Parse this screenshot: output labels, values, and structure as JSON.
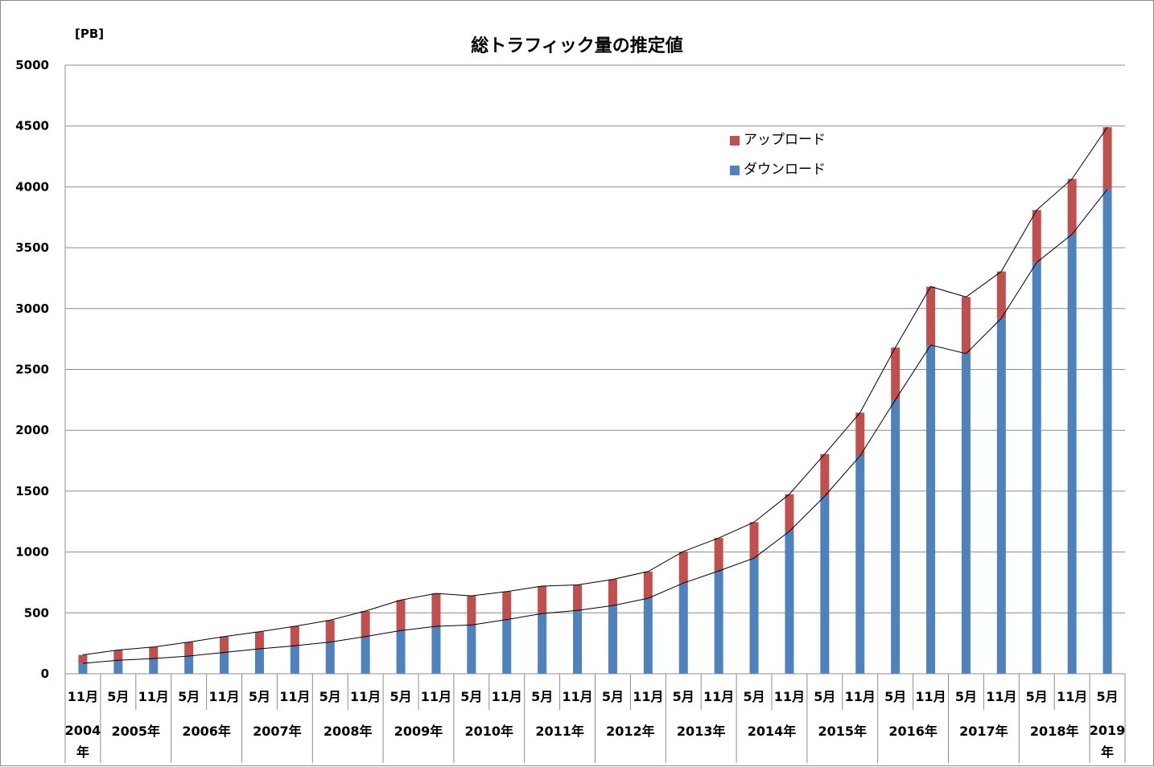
{
  "chart_data": {
    "type": "bar",
    "stacked": true,
    "title": "総トラフィック量の推定値",
    "unit_label": "[PB]",
    "ylim": [
      0,
      5000
    ],
    "yticks": [
      0,
      500,
      1000,
      1500,
      2000,
      2500,
      3000,
      3500,
      4000,
      4500,
      5000
    ],
    "grid": true,
    "legend_position": "top-right",
    "categories": [
      "11月",
      "5月",
      "11月",
      "5月",
      "11月",
      "5月",
      "11月",
      "5月",
      "11月",
      "5月",
      "11月",
      "5月",
      "11月",
      "5月",
      "11月",
      "5月",
      "11月",
      "5月",
      "11月",
      "5月",
      "11月",
      "5月",
      "11月",
      "5月",
      "11月",
      "5月",
      "11月",
      "5月",
      "11月",
      "5月"
    ],
    "year_groups": [
      {
        "label": "2004年",
        "span": 1
      },
      {
        "label": "2005年",
        "span": 2
      },
      {
        "label": "2006年",
        "span": 2
      },
      {
        "label": "2007年",
        "span": 2
      },
      {
        "label": "2008年",
        "span": 2
      },
      {
        "label": "2009年",
        "span": 2
      },
      {
        "label": "2010年",
        "span": 2
      },
      {
        "label": "2011年",
        "span": 2
      },
      {
        "label": "2012年",
        "span": 2
      },
      {
        "label": "2013年",
        "span": 2
      },
      {
        "label": "2014年",
        "span": 2
      },
      {
        "label": "2015年",
        "span": 2
      },
      {
        "label": "2016年",
        "span": 2
      },
      {
        "label": "2017年",
        "span": 2
      },
      {
        "label": "2018年",
        "span": 2
      },
      {
        "label": "2019年",
        "span": 1
      }
    ],
    "series": [
      {
        "name": "ダウンロード",
        "color": "#4f81bd",
        "values": [
          85,
          110,
          125,
          145,
          175,
          205,
          230,
          260,
          305,
          355,
          390,
          400,
          445,
          495,
          520,
          560,
          620,
          745,
          845,
          950,
          1170,
          1460,
          1790,
          2250,
          2700,
          2630,
          2920,
          3380,
          3610,
          3980
        ]
      },
      {
        "name": "アップロード",
        "color": "#c0504d",
        "values": [
          70,
          85,
          95,
          115,
          130,
          140,
          160,
          180,
          210,
          250,
          270,
          240,
          230,
          225,
          210,
          215,
          220,
          260,
          270,
          295,
          305,
          345,
          355,
          430,
          480,
          465,
          385,
          430,
          455,
          510
        ]
      }
    ]
  }
}
